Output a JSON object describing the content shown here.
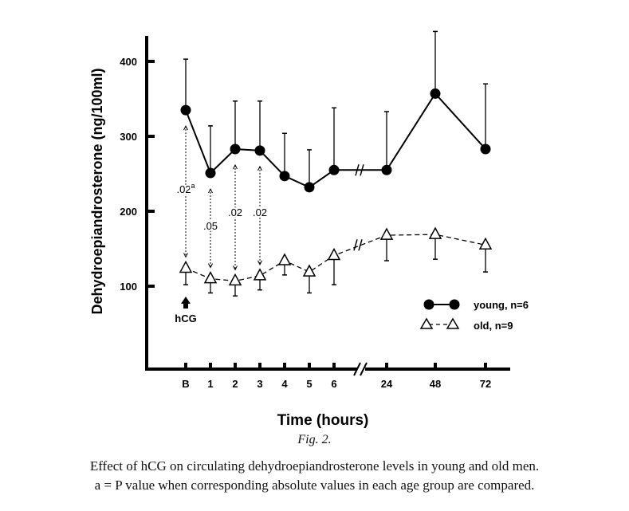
{
  "chart_data": {
    "type": "line",
    "xlabel": "Time (hours)",
    "ylabel": "Dehydroepiandrosterone (ng/100ml)",
    "categories": [
      "B",
      "1",
      "2",
      "3",
      "4",
      "5",
      "6",
      "24",
      "48",
      "72"
    ],
    "yticks": [
      "100",
      "200",
      "300",
      "400"
    ],
    "ylim": [
      0,
      420
    ],
    "axis_break": "between 6 and 24",
    "series": [
      {
        "name": "young, n=6",
        "marker": "filled-circle",
        "line": "solid",
        "values": [
          335,
          251,
          283,
          281,
          247,
          232,
          255,
          255,
          357,
          283
        ],
        "error_upper": [
          403,
          314,
          347,
          347,
          304,
          282,
          338,
          333,
          440,
          370
        ]
      },
      {
        "name": "old, n=9",
        "marker": "open-triangle",
        "line": "dashed",
        "values": [
          124,
          110,
          107,
          114,
          134,
          119,
          141,
          168,
          169,
          155
        ],
        "error_lower": [
          102,
          91,
          87,
          95,
          115,
          91,
          102,
          134,
          136,
          119
        ]
      }
    ],
    "annotations": [
      {
        "category": "B",
        "text": ".02",
        "superscript": "a"
      },
      {
        "category": "1",
        "text": ".05"
      },
      {
        "category": "2",
        "text": ".02"
      },
      {
        "category": "3",
        "text": ".02"
      }
    ],
    "marker_label": "hCG",
    "legend_position": "bottom-right"
  },
  "caption": {
    "figure": "Fig. 2.",
    "line1": "Effect of hCG on circulating dehydroepiandrosterone levels in young and old men.",
    "line2": "a = P value when corresponding absolute values in each age group are compared."
  }
}
